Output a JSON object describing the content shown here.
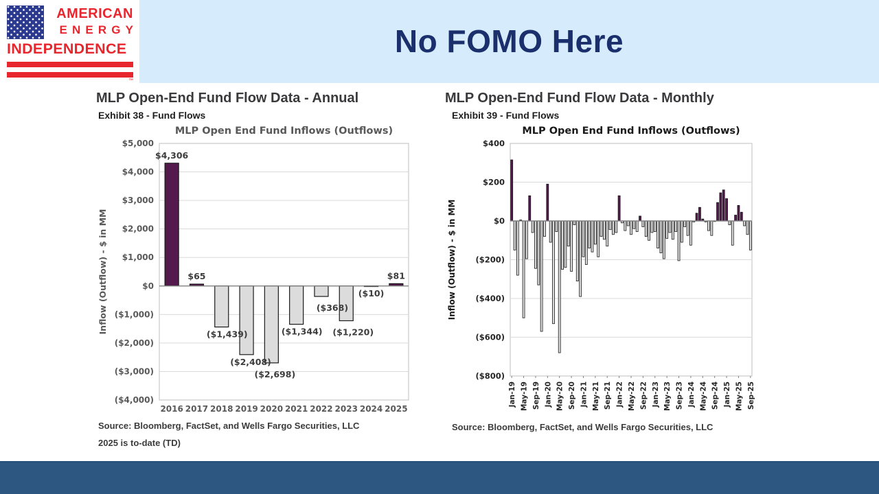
{
  "header": {
    "title": "No FOMO Here",
    "logo": {
      "line1": "AMERICAN",
      "line2": "ENERGY",
      "line3": "INDEPENDENCE",
      "trademark": "™"
    }
  },
  "colors": {
    "band_blue": "#d6ebfb",
    "title_navy": "#1a2f6b",
    "logo_red": "#e8262d",
    "flag_navy": "#2b3a8f",
    "footer_blue": "#2d5681",
    "bar_positive": "#541a4e",
    "bar_negative": "#dcdcdc",
    "bar_outline": "#1a1a1a"
  },
  "chart_data": [
    {
      "type": "bar",
      "panel_title": "MLP Open-End Fund Flow Data - Annual",
      "panel_subtitle": "Exhibit 38 - Fund Flows",
      "title": "MLP Open End Fund Inflows (Outflows)",
      "ylabel": "Inflow (Outflow) - $ in MM",
      "categories": [
        "2016",
        "2017",
        "2018",
        "2019",
        "2020",
        "2021",
        "2022",
        "2023",
        "2024",
        "2025"
      ],
      "values": [
        4306,
        65,
        -1439,
        -2408,
        -2698,
        -1344,
        -368,
        -1220,
        -10,
        81
      ],
      "labels": [
        "$4,306",
        "$65",
        "($1,439)",
        "($2,408)",
        "($2,698)",
        "($1,344)",
        "($368)",
        "($1,220)",
        "($10)",
        "$81"
      ],
      "label_dx": [
        0,
        0,
        8,
        6,
        5,
        8,
        16,
        10,
        0,
        0
      ],
      "label_dy": [
        0,
        0,
        0,
        0,
        6,
        0,
        6,
        6,
        0,
        0
      ],
      "ylim": [
        -4000,
        5000
      ],
      "ytick_step": 1000,
      "yticks": [
        "$5,000",
        "$4,000",
        "$3,000",
        "$2,000",
        "$1,000",
        "$0",
        "($1,000)",
        "($2,000)",
        "($3,000)",
        "($4,000)"
      ],
      "grid": true,
      "legend": "none",
      "colors": {
        "positive": "#541a4e",
        "negative": "#dcdcdc",
        "outline": "#1a1a1a"
      },
      "source": "Source: Bloomberg, FactSet, and Wells Fargo Securities, LLC",
      "note": "2025 is to-date (TD)"
    },
    {
      "type": "bar",
      "panel_title": "MLP Open-End Fund Flow Data - Monthly",
      "panel_subtitle": "Exhibit 39 - Fund Flows",
      "title": "MLP Open End Fund Inflows (Outflows)",
      "ylabel": "Inflow (Outflow) - $ in MM",
      "x": [
        "Jan-19",
        "Feb-19",
        "Mar-19",
        "Apr-19",
        "May-19",
        "Jun-19",
        "Jul-19",
        "Aug-19",
        "Sep-19",
        "Oct-19",
        "Nov-19",
        "Dec-19",
        "Jan-20",
        "Feb-20",
        "Mar-20",
        "Apr-20",
        "May-20",
        "Jun-20",
        "Jul-20",
        "Aug-20",
        "Sep-20",
        "Oct-20",
        "Nov-20",
        "Dec-20",
        "Jan-21",
        "Feb-21",
        "Mar-21",
        "Apr-21",
        "May-21",
        "Jun-21",
        "Jul-21",
        "Aug-21",
        "Sep-21",
        "Oct-21",
        "Nov-21",
        "Dec-21",
        "Jan-22",
        "Feb-22",
        "Mar-22",
        "Apr-22",
        "May-22",
        "Jun-22",
        "Jul-22",
        "Aug-22",
        "Sep-22",
        "Oct-22",
        "Nov-22",
        "Dec-22",
        "Jan-23",
        "Feb-23",
        "Mar-23",
        "Apr-23",
        "May-23",
        "Jun-23",
        "Jul-23",
        "Aug-23",
        "Sep-23",
        "Oct-23",
        "Nov-23",
        "Dec-23",
        "Jan-24",
        "Feb-24",
        "Mar-24",
        "Apr-24",
        "May-24",
        "Jun-24",
        "Jul-24",
        "Aug-24",
        "Sep-24",
        "Oct-24",
        "Nov-24",
        "Dec-24",
        "Jan-25",
        "Feb-25",
        "Mar-25",
        "Apr-25",
        "May-25",
        "Jun-25",
        "Jul-25",
        "Aug-25",
        "Sep-25"
      ],
      "values": [
        315,
        -150,
        -280,
        5,
        -500,
        -195,
        130,
        -60,
        -245,
        -330,
        -570,
        -80,
        190,
        -110,
        -530,
        -55,
        -680,
        -250,
        -240,
        -130,
        -260,
        -20,
        -310,
        -390,
        -185,
        -225,
        -140,
        -160,
        -120,
        -185,
        -80,
        -95,
        -130,
        -45,
        -70,
        -60,
        130,
        -10,
        -50,
        -25,
        -70,
        -40,
        -55,
        25,
        -30,
        -80,
        -100,
        -60,
        -55,
        -140,
        -165,
        -195,
        -90,
        -60,
        -95,
        -55,
        -205,
        -110,
        -30,
        -75,
        -125,
        -5,
        40,
        70,
        10,
        -5,
        -50,
        -75,
        -3,
        95,
        145,
        160,
        115,
        -20,
        -125,
        30,
        80,
        45,
        -25,
        -70,
        -150
      ],
      "xtick_every": 4,
      "ylim": [
        -800,
        400
      ],
      "ytick_step": 200,
      "yticks": [
        "$400",
        "$200",
        "$0",
        "($200)",
        "($400)",
        "($600)",
        "($800)"
      ],
      "grid": true,
      "legend": "none",
      "colors": {
        "positive": "#541a4e",
        "negative": "#dcdcdc",
        "outline": "#1a1a1a"
      },
      "source": "Source: Bloomberg, FactSet, and Wells Fargo Securities, LLC"
    }
  ]
}
